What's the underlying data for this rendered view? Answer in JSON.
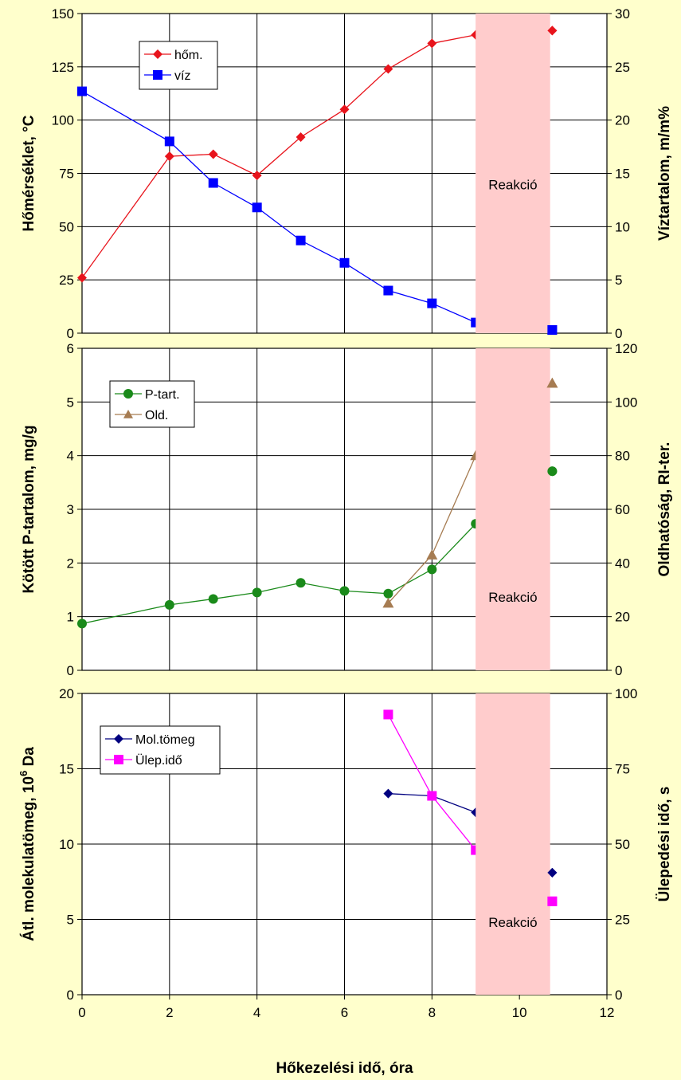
{
  "chart_data": [
    {
      "type": "line",
      "panel": "top",
      "xlim": [
        0,
        12
      ],
      "y_left": {
        "label": "Hőmérséklet, °C",
        "range": [
          0,
          150
        ],
        "ticks": [
          0,
          25,
          50,
          75,
          100,
          125,
          150
        ]
      },
      "y_right": {
        "label": "Víztartalom, m/m%",
        "range": [
          0,
          30
        ],
        "ticks": [
          0,
          5,
          10,
          15,
          20,
          25,
          30
        ]
      },
      "band": {
        "x0": 9,
        "x1": 10.7,
        "label": "Reakció",
        "color": "#ffcccc"
      },
      "legend": "top-left",
      "series": [
        {
          "name": "hőm.",
          "axis": "left",
          "color": "#e8141c",
          "marker": "diamond",
          "x": [
            0,
            2,
            3,
            4,
            5,
            6,
            7,
            8,
            9,
            10.75
          ],
          "y": [
            26,
            83,
            84,
            74,
            92,
            105,
            124,
            136,
            140,
            142
          ]
        },
        {
          "name": "víz",
          "axis": "right",
          "color": "#0000ff",
          "marker": "square",
          "x": [
            0,
            2,
            3,
            4,
            5,
            6,
            7,
            8,
            9,
            10.75
          ],
          "y": [
            22.7,
            18,
            14.1,
            11.8,
            8.7,
            6.6,
            4,
            2.8,
            1,
            0.3
          ]
        }
      ]
    },
    {
      "type": "line",
      "panel": "middle",
      "xlim": [
        0,
        12
      ],
      "y_left": {
        "label": "Kötött P-tartalom, mg/g",
        "range": [
          0,
          6
        ],
        "ticks": [
          0,
          1,
          2,
          3,
          4,
          5,
          6
        ]
      },
      "y_right": {
        "label": "Oldhatóság, RI-ter.",
        "range": [
          0,
          120
        ],
        "ticks": [
          0,
          20,
          40,
          60,
          80,
          100,
          120
        ]
      },
      "band": {
        "x0": 9,
        "x1": 10.7,
        "label": "Reakció",
        "color": "#ffcccc"
      },
      "legend": "top-left",
      "series": [
        {
          "name": "P-tart.",
          "axis": "left",
          "color": "#1a8a1a",
          "marker": "circle",
          "x": [
            0,
            2,
            3,
            4,
            5,
            6,
            7,
            8,
            9,
            10.75
          ],
          "y": [
            0.87,
            1.22,
            1.33,
            1.45,
            1.63,
            1.48,
            1.43,
            1.88,
            2.73,
            3.71
          ]
        },
        {
          "name": "Old.",
          "axis": "right",
          "color": "#a67c52",
          "marker": "triangle",
          "x": [
            7,
            8,
            9,
            10.75
          ],
          "y": [
            25,
            43,
            80,
            107
          ]
        }
      ]
    },
    {
      "type": "line",
      "panel": "bottom",
      "xlim": [
        0,
        12
      ],
      "x_ticks": [
        0,
        2,
        4,
        6,
        8,
        10,
        12
      ],
      "xlabel": "Hőkezelési idő, óra",
      "y_left": {
        "label": "Átl. molekulatömeg, 10",
        "label_sup": "6",
        "label_suffix": " Da",
        "range": [
          0,
          20
        ],
        "ticks": [
          0,
          5,
          10,
          15,
          20
        ]
      },
      "y_right": {
        "label": "Ülepedési idő, s",
        "range": [
          0,
          100
        ],
        "ticks": [
          0,
          25,
          50,
          75,
          100
        ]
      },
      "band": {
        "x0": 9,
        "x1": 10.7,
        "label": "Reakció",
        "color": "#ffcccc"
      },
      "legend": "top-left",
      "series": [
        {
          "name": "Mol.tömeg",
          "axis": "left",
          "color": "#000080",
          "marker": "diamond",
          "x": [
            7,
            8,
            9,
            10.75
          ],
          "y": [
            13.35,
            13.2,
            12.1,
            8.1
          ]
        },
        {
          "name": "Ülep.idő",
          "axis": "right",
          "color": "#ff00ff",
          "marker": "square",
          "x": [
            7,
            8,
            9,
            10.75
          ],
          "y": [
            93,
            66,
            48,
            31
          ]
        }
      ]
    }
  ]
}
